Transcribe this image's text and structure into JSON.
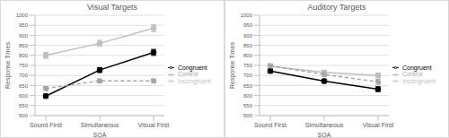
{
  "chart_data": [
    {
      "type": "line",
      "title": "Visual Targets",
      "x_label": "SOA",
      "y_label": "Response Times",
      "categories": [
        "Sound First",
        "Simultaneous",
        "Visual First"
      ],
      "ylim": [
        500,
        1000
      ],
      "yticks": [
        500,
        550,
        600,
        650,
        700,
        750,
        800,
        850,
        900,
        950,
        1000
      ],
      "grid": true,
      "legend": "right",
      "series": [
        {
          "name": "Incongruent",
          "color": "#bfbfbf",
          "marker": "circle",
          "line_style": "solid",
          "values": [
            800,
            860,
            935
          ],
          "errors": [
            15,
            15,
            18
          ]
        },
        {
          "name": "Congruent",
          "color": "#000000",
          "marker": "circle",
          "line_style": "solid",
          "values": [
            597,
            727,
            815
          ],
          "errors": [
            10,
            12,
            15
          ]
        },
        {
          "name": "Control",
          "color": "#a6a6a6",
          "marker": "circle",
          "line_style": "dashed",
          "values": [
            635,
            673,
            673
          ],
          "errors": [
            10,
            10,
            10
          ]
        }
      ]
    },
    {
      "type": "line",
      "title": "Auditory Targets",
      "x_label": "SOA",
      "y_label": "Response Times",
      "categories": [
        "Sound First",
        "Simultaneous",
        "Visual First"
      ],
      "ylim": [
        500,
        1000
      ],
      "yticks": [
        500,
        550,
        600,
        650,
        700,
        750,
        800,
        850,
        900,
        950,
        1000
      ],
      "grid": true,
      "legend": "right",
      "series": [
        {
          "name": "Incongruent",
          "color": "#bfbfbf",
          "marker": "circle",
          "line_style": "solid",
          "values": [
            745,
            715,
            700
          ],
          "errors": [
            12,
            10,
            12
          ]
        },
        {
          "name": "Congruent",
          "color": "#000000",
          "marker": "circle",
          "line_style": "solid",
          "values": [
            722,
            672,
            632
          ],
          "errors": [
            10,
            10,
            12
          ]
        },
        {
          "name": "Control",
          "color": "#a6a6a6",
          "marker": "circle",
          "line_style": "dashed",
          "values": [
            748,
            705,
            668
          ],
          "errors": [
            10,
            10,
            12
          ]
        }
      ]
    }
  ]
}
